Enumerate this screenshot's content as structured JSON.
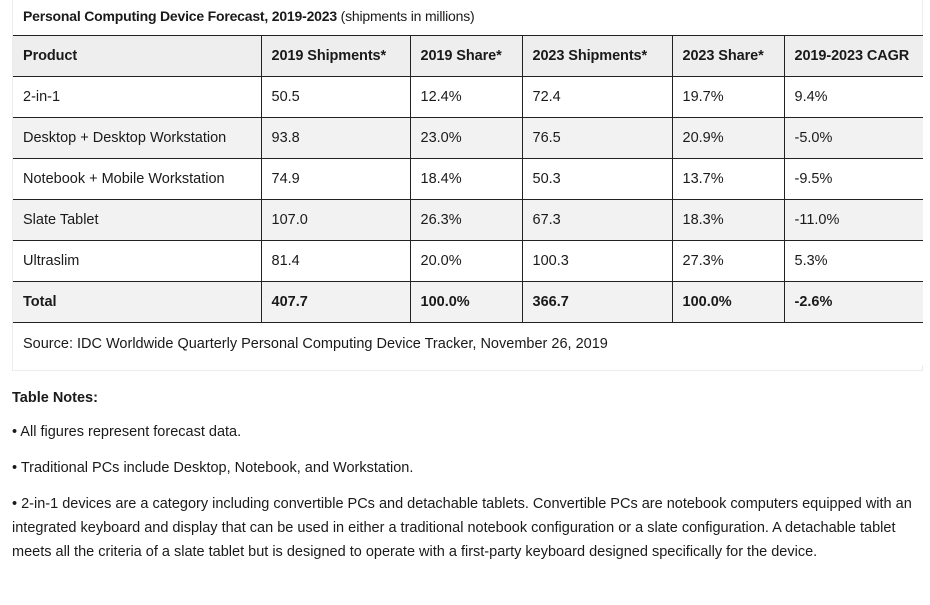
{
  "caption": {
    "title": "Personal Computing Device Forecast, 2019-2023",
    "subtitle": " (shipments in millions)"
  },
  "table": {
    "headers": [
      "Product",
      "2019 Shipments*",
      "2019 Share*",
      "2023 Shipments*",
      "2023 Share*",
      "2019-2023 CAGR"
    ],
    "rows": [
      [
        "2-in-1",
        "50.5",
        "12.4%",
        "72.4",
        "19.7%",
        "9.4%"
      ],
      [
        "Desktop + Desktop Workstation",
        "93.8",
        "23.0%",
        "76.5",
        "20.9%",
        "-5.0%"
      ],
      [
        "Notebook + Mobile Workstation",
        "74.9",
        "18.4%",
        "50.3",
        "13.7%",
        "-9.5%"
      ],
      [
        "Slate Tablet",
        "107.0",
        "26.3%",
        "67.3",
        "18.3%",
        "-11.0%"
      ],
      [
        "Ultraslim",
        "81.4",
        "20.0%",
        "100.3",
        "27.3%",
        "5.3%"
      ]
    ],
    "total": [
      "Total",
      "407.7",
      "100.0%",
      "366.7",
      "100.0%",
      "-2.6%"
    ],
    "source": "Source: IDC Worldwide Quarterly Personal Computing Device Tracker, November 26, 2019"
  },
  "notes": {
    "title": "Table Notes:",
    "items": [
      "• All figures represent forecast data.",
      "• Traditional PCs include Desktop, Notebook, and Workstation.",
      "• 2-in-1 devices are a category including convertible PCs and detachable tablets. Convertible PCs are notebook computers equipped with an integrated keyboard and display that can be used in either a traditional notebook configuration or a slate configuration. A detachable tablet meets all the criteria of a slate tablet but is designed to operate with a first-party keyboard designed specifically for the device."
    ]
  },
  "colors": {
    "header_bg": "#eeeeee",
    "alt_row_bg": "#f2f2f2",
    "border": "#222222"
  }
}
